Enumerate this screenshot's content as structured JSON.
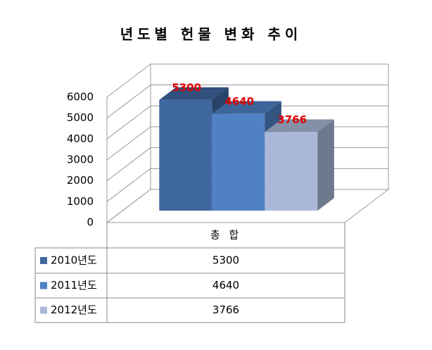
{
  "chart_data": {
    "type": "bar3d",
    "title": "년도별 헌물 변화 추이",
    "categories": [
      "총 합"
    ],
    "series": [
      {
        "name": "2010년도",
        "color": "#3f67a0",
        "values": [
          5300
        ]
      },
      {
        "name": "2011년도",
        "color": "#4f81c4",
        "values": [
          4640
        ]
      },
      {
        "name": "2012년도",
        "color": "#a9b8d8",
        "values": [
          3766
        ]
      }
    ],
    "ylim": [
      0,
      6000
    ],
    "yticks": [
      0,
      1000,
      2000,
      3000,
      4000,
      5000,
      6000
    ],
    "grid": true,
    "data_table": true
  }
}
